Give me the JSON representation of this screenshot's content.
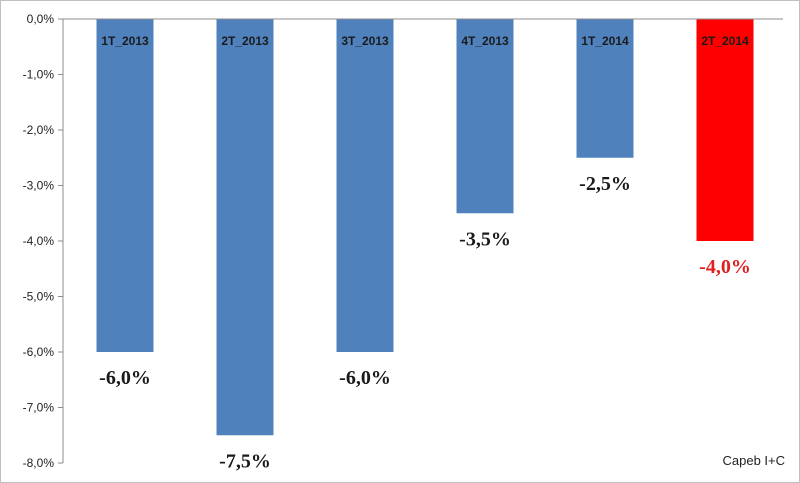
{
  "source_note": "Capeb I+C",
  "chart_data": {
    "type": "bar",
    "categories": [
      "1T_2013",
      "2T_2013",
      "3T_2013",
      "4T_2013",
      "1T_2014",
      "2T_2014"
    ],
    "values": [
      -6.0,
      -7.5,
      -6.0,
      -3.5,
      -2.5,
      -4.0
    ],
    "data_labels": [
      "-6,0%",
      "-7,5%",
      "-6,0%",
      "-3,5%",
      "-2,5%",
      "-4,0%"
    ],
    "bar_colors": [
      "#4f81bd",
      "#4f81bd",
      "#4f81bd",
      "#4f81bd",
      "#4f81bd",
      "#ff0000"
    ],
    "label_colors": [
      "#1a1a1a",
      "#1a1a1a",
      "#1a1a1a",
      "#1a1a1a",
      "#1a1a1a",
      "#e02020"
    ],
    "ylim": [
      -8.0,
      0.0
    ],
    "yticks": [
      0,
      -1,
      -2,
      -3,
      -4,
      -5,
      -6,
      -7,
      -8
    ],
    "ytick_labels": [
      "0,0%",
      "-1,0%",
      "-2,0%",
      "-3,0%",
      "-4,0%",
      "-5,0%",
      "-6,0%",
      "-7,0%",
      "-8,0%"
    ],
    "grid": false,
    "legend": "none",
    "title": "",
    "xlabel": "",
    "ylabel": ""
  }
}
